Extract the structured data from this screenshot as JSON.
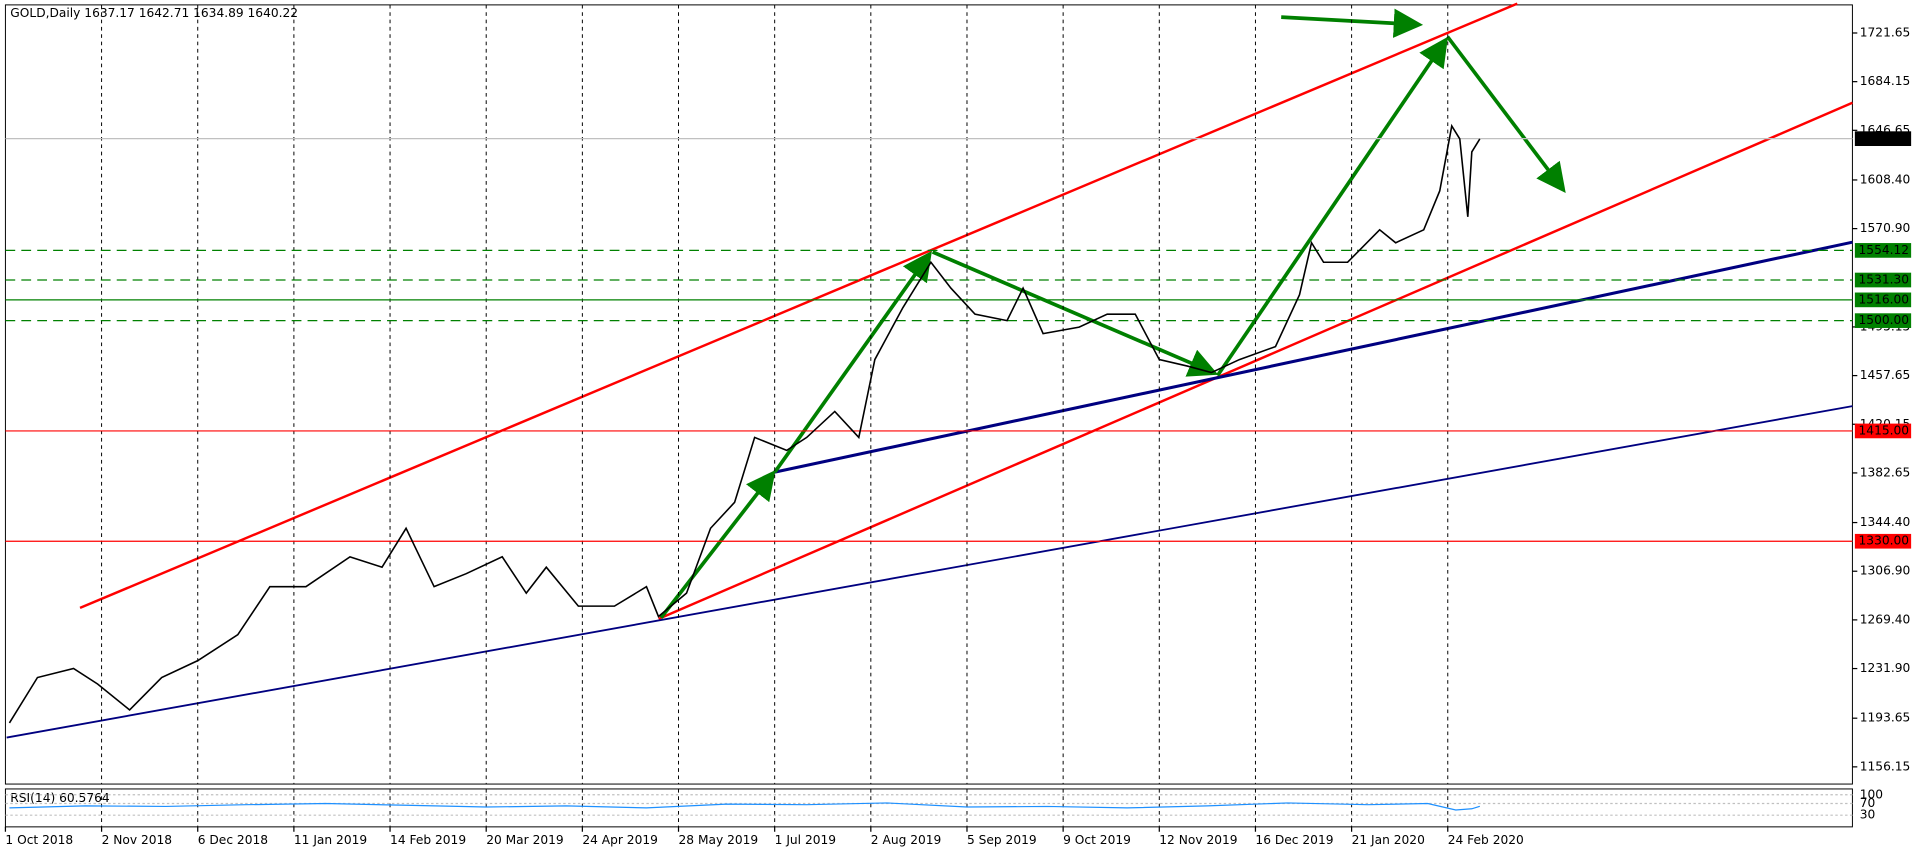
{
  "chart_data": {
    "type": "line",
    "title": "GOLD,Daily  1637.17 1642.71 1634.89 1640.22",
    "x": [
      1,
      8,
      17,
      23,
      31,
      39,
      48,
      58,
      66,
      75,
      86,
      94,
      100,
      107,
      115,
      124,
      130,
      135,
      143,
      152,
      160,
      163,
      170,
      176,
      182,
      187,
      195,
      200,
      207,
      213,
      217,
      224,
      231,
      236,
      242,
      250,
      254,
      259,
      268,
      275,
      282,
      288,
      295,
      301,
      308,
      317,
      323,
      326,
      329,
      335,
      343,
      347,
      354,
      358,
      361,
      363,
      365,
      366,
      368
    ],
    "series": [
      {
        "name": "GOLD",
        "color": "#000000",
        "values": [
          1190,
          1225,
          1232,
          1220,
          1200,
          1225,
          1238,
          1258,
          1295,
          1295,
          1318,
          1310,
          1340,
          1295,
          1305,
          1318,
          1290,
          1310,
          1280,
          1280,
          1295,
          1272,
          1290,
          1340,
          1360,
          1410,
          1400,
          1410,
          1430,
          1410,
          1470,
          1510,
          1545,
          1525,
          1505,
          1500,
          1525,
          1490,
          1495,
          1505,
          1505,
          1470,
          1465,
          1460,
          1470,
          1480,
          1520,
          1560,
          1545,
          1545,
          1570,
          1560,
          1570,
          1600,
          1650,
          1640,
          1580,
          1630,
          1640
        ]
      }
    ],
    "current_price": {
      "value": 1640.22,
      "label": "1640.22"
    },
    "levels": [
      {
        "value": 1554.12,
        "label": "1554.12",
        "color": "#008000",
        "dashed": true
      },
      {
        "value": 1531.3,
        "label": "1531.30",
        "color": "#008000",
        "dashed": true
      },
      {
        "value": 1516,
        "label": "1516.00",
        "color": "#008000",
        "dashed": false
      },
      {
        "value": 1500,
        "label": "1500.00",
        "color": "#008000",
        "dashed": true
      },
      {
        "value": 1415,
        "label": "1415.00",
        "color": "#ff0000",
        "dashed": false
      },
      {
        "value": 1330,
        "label": "1330.00",
        "color": "#ff0000",
        "dashed": false
      }
    ],
    "xlim": [
      0,
      461
    ],
    "ylim": [
      1142.9,
      1743.3
    ],
    "xticks": [
      {
        "value": 0,
        "label": "1 Oct 2018"
      },
      {
        "value": 24,
        "label": "2 Nov 2018"
      },
      {
        "value": 48,
        "label": "6 Dec 2018"
      },
      {
        "value": 72,
        "label": "11 Jan 2019"
      },
      {
        "value": 96,
        "label": "14 Feb 2019"
      },
      {
        "value": 120,
        "label": "20 Mar 2019"
      },
      {
        "value": 144,
        "label": "24 Apr 2019"
      },
      {
        "value": 168,
        "label": "28 May 2019"
      },
      {
        "value": 192,
        "label": "1 Jul 2019"
      },
      {
        "value": 216,
        "label": "2 Aug 2019"
      },
      {
        "value": 240,
        "label": "5 Sep 2019"
      },
      {
        "value": 264,
        "label": "9 Oct 2019"
      },
      {
        "value": 288,
        "label": "12 Nov 2019"
      },
      {
        "value": 312,
        "label": "16 Dec 2019"
      },
      {
        "value": 336,
        "label": "21 Jan 2020"
      },
      {
        "value": 360,
        "label": "24 Feb 2020"
      }
    ],
    "yticks": [
      1721.65,
      1684.15,
      1646.65,
      {
        "value": 1608.4,
        "label": "1608.40"
      },
      {
        "value": 1570.9,
        "label": "1570.90"
      },
      1495.15,
      1457.65,
      1420.15,
      1382.65,
      {
        "value": 1344.4,
        "label": "1344.40"
      },
      {
        "value": 1306.9,
        "label": "1306.90"
      },
      {
        "value": 1269.4,
        "label": "1269.40"
      },
      {
        "value": 1231.9,
        "label": "1231.90"
      },
      1193.65,
      1156.15
    ],
    "grid": true,
    "rsi": {
      "name": "RSI(14) 60.5764",
      "color": "#1e90ff",
      "ylim": [
        -10,
        120
      ],
      "yticks": [
        100,
        70,
        30
      ],
      "x": [
        1,
        20,
        40,
        60,
        80,
        100,
        120,
        140,
        160,
        180,
        200,
        220,
        240,
        260,
        280,
        300,
        320,
        340,
        355,
        362,
        366,
        368
      ],
      "values": [
        55,
        62,
        60,
        66,
        70,
        64,
        58,
        62,
        55,
        68,
        66,
        72,
        58,
        60,
        55,
        62,
        72,
        66,
        70,
        48,
        52,
        60.5764
      ]
    }
  }
}
